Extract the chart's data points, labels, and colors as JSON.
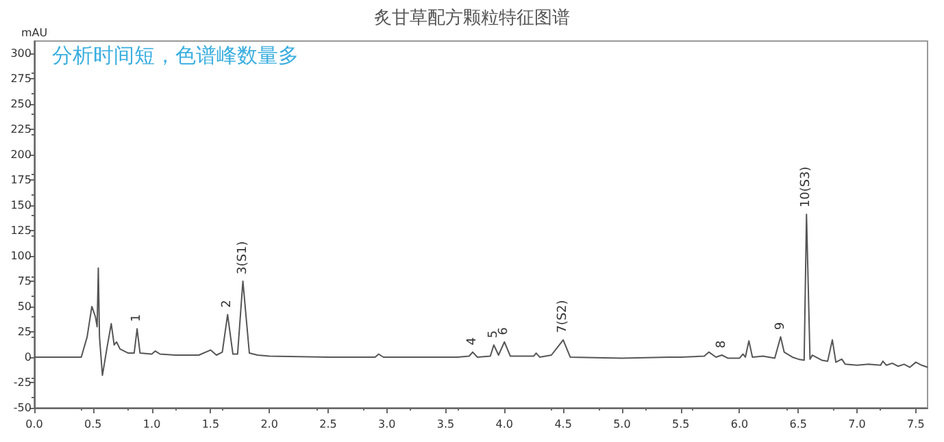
{
  "chart_data": {
    "type": "line",
    "title": "炙甘草配方颗粒特征图谱",
    "ylabel": "mAU",
    "annotations": [
      "分析时间短，色谱峰数量多",
      {
        "text": "1",
        "x": 0.875,
        "y": 28
      },
      {
        "text": "2",
        "x": 1.645,
        "y": 42
      },
      {
        "text": "3(S1)",
        "x": 1.775,
        "y": 75
      },
      {
        "text": "4",
        "x": 3.73,
        "y": 5
      },
      {
        "text": "5",
        "x": 3.91,
        "y": 12
      },
      {
        "text": "6",
        "x": 4.0,
        "y": 15
      },
      {
        "text": "7(S2)",
        "x": 4.5,
        "y": 17
      },
      {
        "text": "8",
        "x": 5.85,
        "y": 2
      },
      {
        "text": "9",
        "x": 6.35,
        "y": 20
      },
      {
        "text": "10(S3)",
        "x": 6.57,
        "y": 141
      }
    ],
    "series": [
      {
        "color": "#555555",
        "x": [
          0.0,
          0.4,
          0.45,
          0.49,
          0.52,
          0.535,
          0.545,
          0.555,
          0.58,
          0.62,
          0.655,
          0.68,
          0.7,
          0.73,
          0.8,
          0.85,
          0.875,
          0.9,
          1.0,
          1.03,
          1.07,
          1.2,
          1.4,
          1.5,
          1.55,
          1.6,
          1.645,
          1.69,
          1.73,
          1.775,
          1.83,
          1.9,
          2.0,
          2.5,
          2.9,
          2.93,
          2.97,
          3.6,
          3.7,
          3.73,
          3.77,
          3.88,
          3.91,
          3.95,
          4.0,
          4.05,
          4.25,
          4.27,
          4.3,
          4.4,
          4.5,
          4.56,
          5.0,
          5.4,
          5.5,
          5.7,
          5.74,
          5.8,
          5.85,
          5.9,
          6.0,
          6.03,
          6.05,
          6.08,
          6.11,
          6.2,
          6.3,
          6.35,
          6.38,
          6.45,
          6.5,
          6.55,
          6.57,
          6.6,
          6.62,
          6.7,
          6.75,
          6.79,
          6.82,
          6.87,
          6.9,
          7.0,
          7.1,
          7.2,
          7.22,
          7.25,
          7.3,
          7.35,
          7.4,
          7.45,
          7.5,
          7.55,
          7.6
        ],
        "values": [
          0,
          0,
          20,
          50,
          40,
          30,
          88,
          20,
          -18,
          10,
          33,
          12,
          15,
          8,
          4,
          4,
          28,
          4,
          3,
          6,
          3,
          2,
          2,
          7,
          2,
          5,
          42,
          3,
          3,
          75,
          4,
          2,
          1,
          0,
          0,
          3,
          0,
          0,
          1,
          5,
          0,
          1,
          12,
          2,
          15,
          1,
          1,
          4,
          0,
          2,
          17,
          0,
          -1,
          0,
          0,
          1,
          5,
          0,
          2,
          -1,
          -1,
          3,
          0,
          16,
          0,
          1,
          -1,
          20,
          5,
          0,
          -2,
          -3,
          141,
          -2,
          2,
          -3,
          -4,
          17,
          -5,
          -2,
          -7,
          -8,
          -7,
          -8,
          -4,
          -8,
          -6,
          -9,
          -7,
          -10,
          -5,
          -8,
          -10
        ]
      }
    ],
    "xlim": [
      0,
      7.6
    ],
    "xticks": [
      {
        "value": 0,
        "label": "0.0"
      },
      0.5,
      {
        "value": 1,
        "label": "1.0"
      },
      1.5,
      {
        "value": 2,
        "label": "2.0"
      },
      2.5,
      {
        "value": 3,
        "label": "3.0"
      },
      3.5,
      {
        "value": 4,
        "label": "4.0"
      },
      4.5,
      {
        "value": 5,
        "label": "5.0"
      },
      5.5,
      {
        "value": 6,
        "label": "6.0"
      },
      6.5,
      {
        "value": 7,
        "label": "7.0"
      },
      7.5
    ],
    "ylim": [
      -50,
      312
    ],
    "yticks": [
      -50,
      -25,
      0,
      25,
      50,
      75,
      100,
      125,
      150,
      175,
      200,
      225,
      250,
      275,
      300
    ],
    "grid": false,
    "marker": "none",
    "line_style": "solid"
  }
}
